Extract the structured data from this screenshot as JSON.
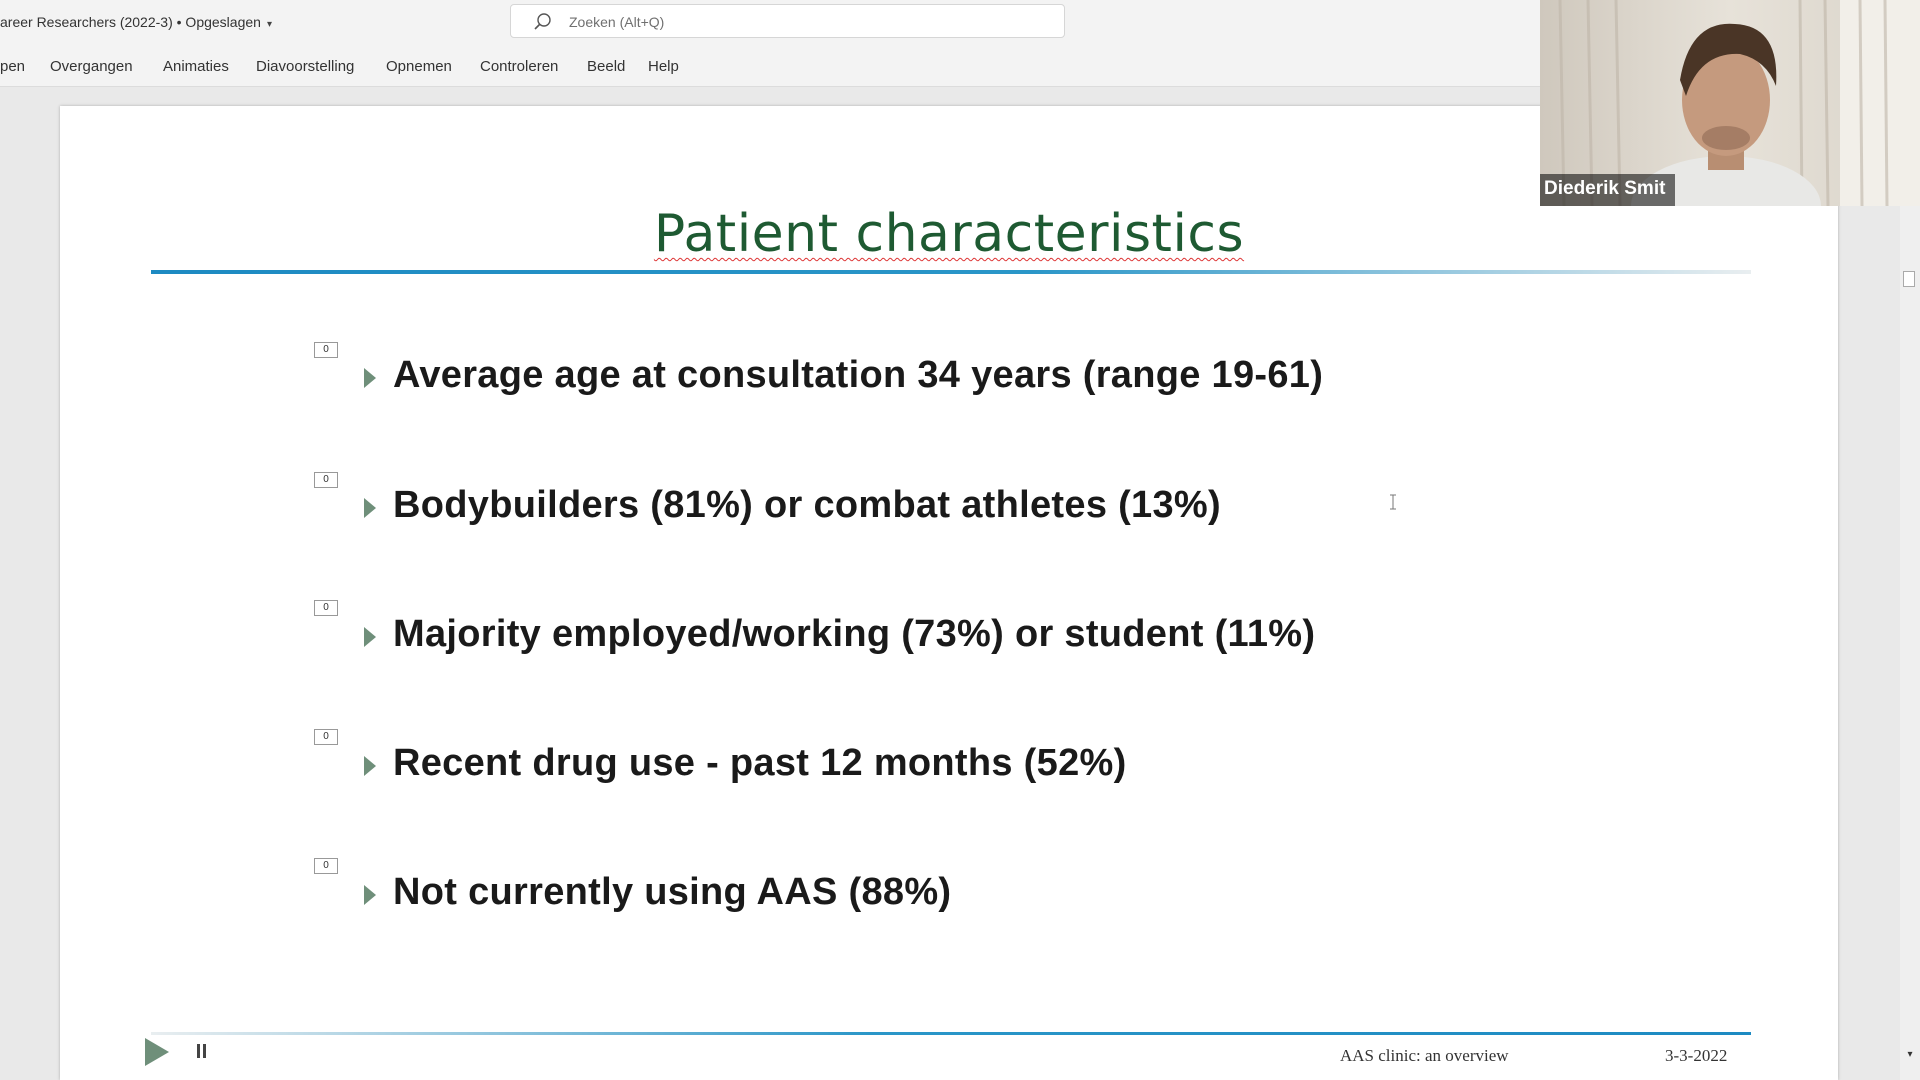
{
  "window": {
    "doc_title": "areer Researchers (2022-3) • Opgeslagen"
  },
  "search": {
    "placeholder": "Zoeken (Alt+Q)"
  },
  "ribbon": {
    "tabs": [
      {
        "label": "pen"
      },
      {
        "label": "Overgangen"
      },
      {
        "label": "Animaties"
      },
      {
        "label": "Diavoorstelling"
      },
      {
        "label": "Opnemen"
      },
      {
        "label": "Controleren"
      },
      {
        "label": "Beeld"
      },
      {
        "label": "Help"
      }
    ]
  },
  "slide": {
    "title": "Patient characteristics",
    "bullets": [
      {
        "anim": "0",
        "text": "Average age at consultation 34 years (range 19-61)"
      },
      {
        "anim": "0",
        "text": "Bodybuilders (81%) or combat athletes (13%)"
      },
      {
        "anim": "0",
        "text": "Majority employed/working (73%) or student (11%)"
      },
      {
        "anim": "0",
        "text": "Recent drug use - past 12 months (52%)"
      },
      {
        "anim": "0",
        "text": "Not currently using AAS (88%)"
      }
    ],
    "footer_title": "AAS clinic: an overview",
    "footer_date": "3-3-2022"
  },
  "video": {
    "participant_name": "Diederik Smit"
  },
  "colors": {
    "title_green": "#1e5a32",
    "accent_blue": "#1d8ac2",
    "bullet_arrow": "#6f8f7a"
  }
}
